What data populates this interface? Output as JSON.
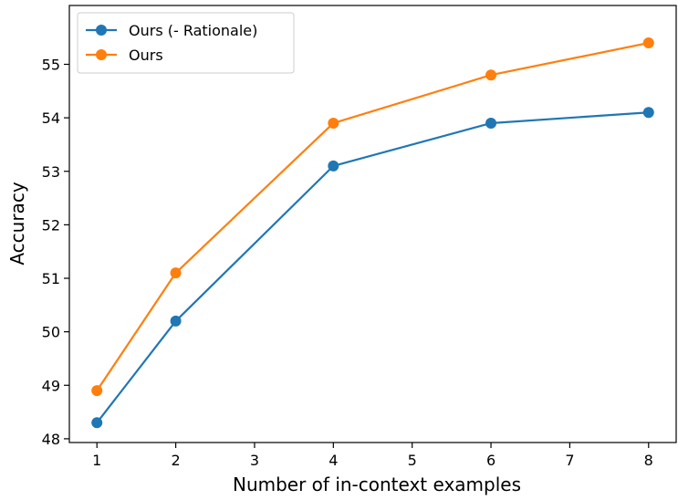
{
  "chart_data": {
    "type": "line",
    "title": "",
    "xlabel": "Number of in-context examples",
    "ylabel": "Accuracy",
    "xlim": [
      0.65,
      8.35
    ],
    "ylim": [
      47.93,
      56.1
    ],
    "xticks": [
      1,
      2,
      3,
      4,
      5,
      6,
      7,
      8
    ],
    "yticks": [
      48,
      49,
      50,
      51,
      52,
      53,
      54,
      55
    ],
    "xtick_labels": [
      "1",
      "2",
      "3",
      "4",
      "5",
      "6",
      "7",
      "8"
    ],
    "ytick_labels": [
      "48",
      "49",
      "50",
      "51",
      "52",
      "53",
      "54",
      "55"
    ],
    "grid": false,
    "legend": "top-left",
    "series": [
      {
        "name": "Ours (- Rationale)",
        "color": "#1f77b4",
        "marker": "circle",
        "x": [
          1,
          2,
          4,
          6,
          8
        ],
        "y": [
          48.3,
          50.2,
          53.1,
          53.9,
          54.1
        ]
      },
      {
        "name": "Ours",
        "color": "#ff7f0e",
        "marker": "circle",
        "x": [
          1,
          2,
          4,
          6,
          8
        ],
        "y": [
          48.9,
          51.1,
          53.9,
          54.8,
          55.4
        ]
      }
    ]
  }
}
